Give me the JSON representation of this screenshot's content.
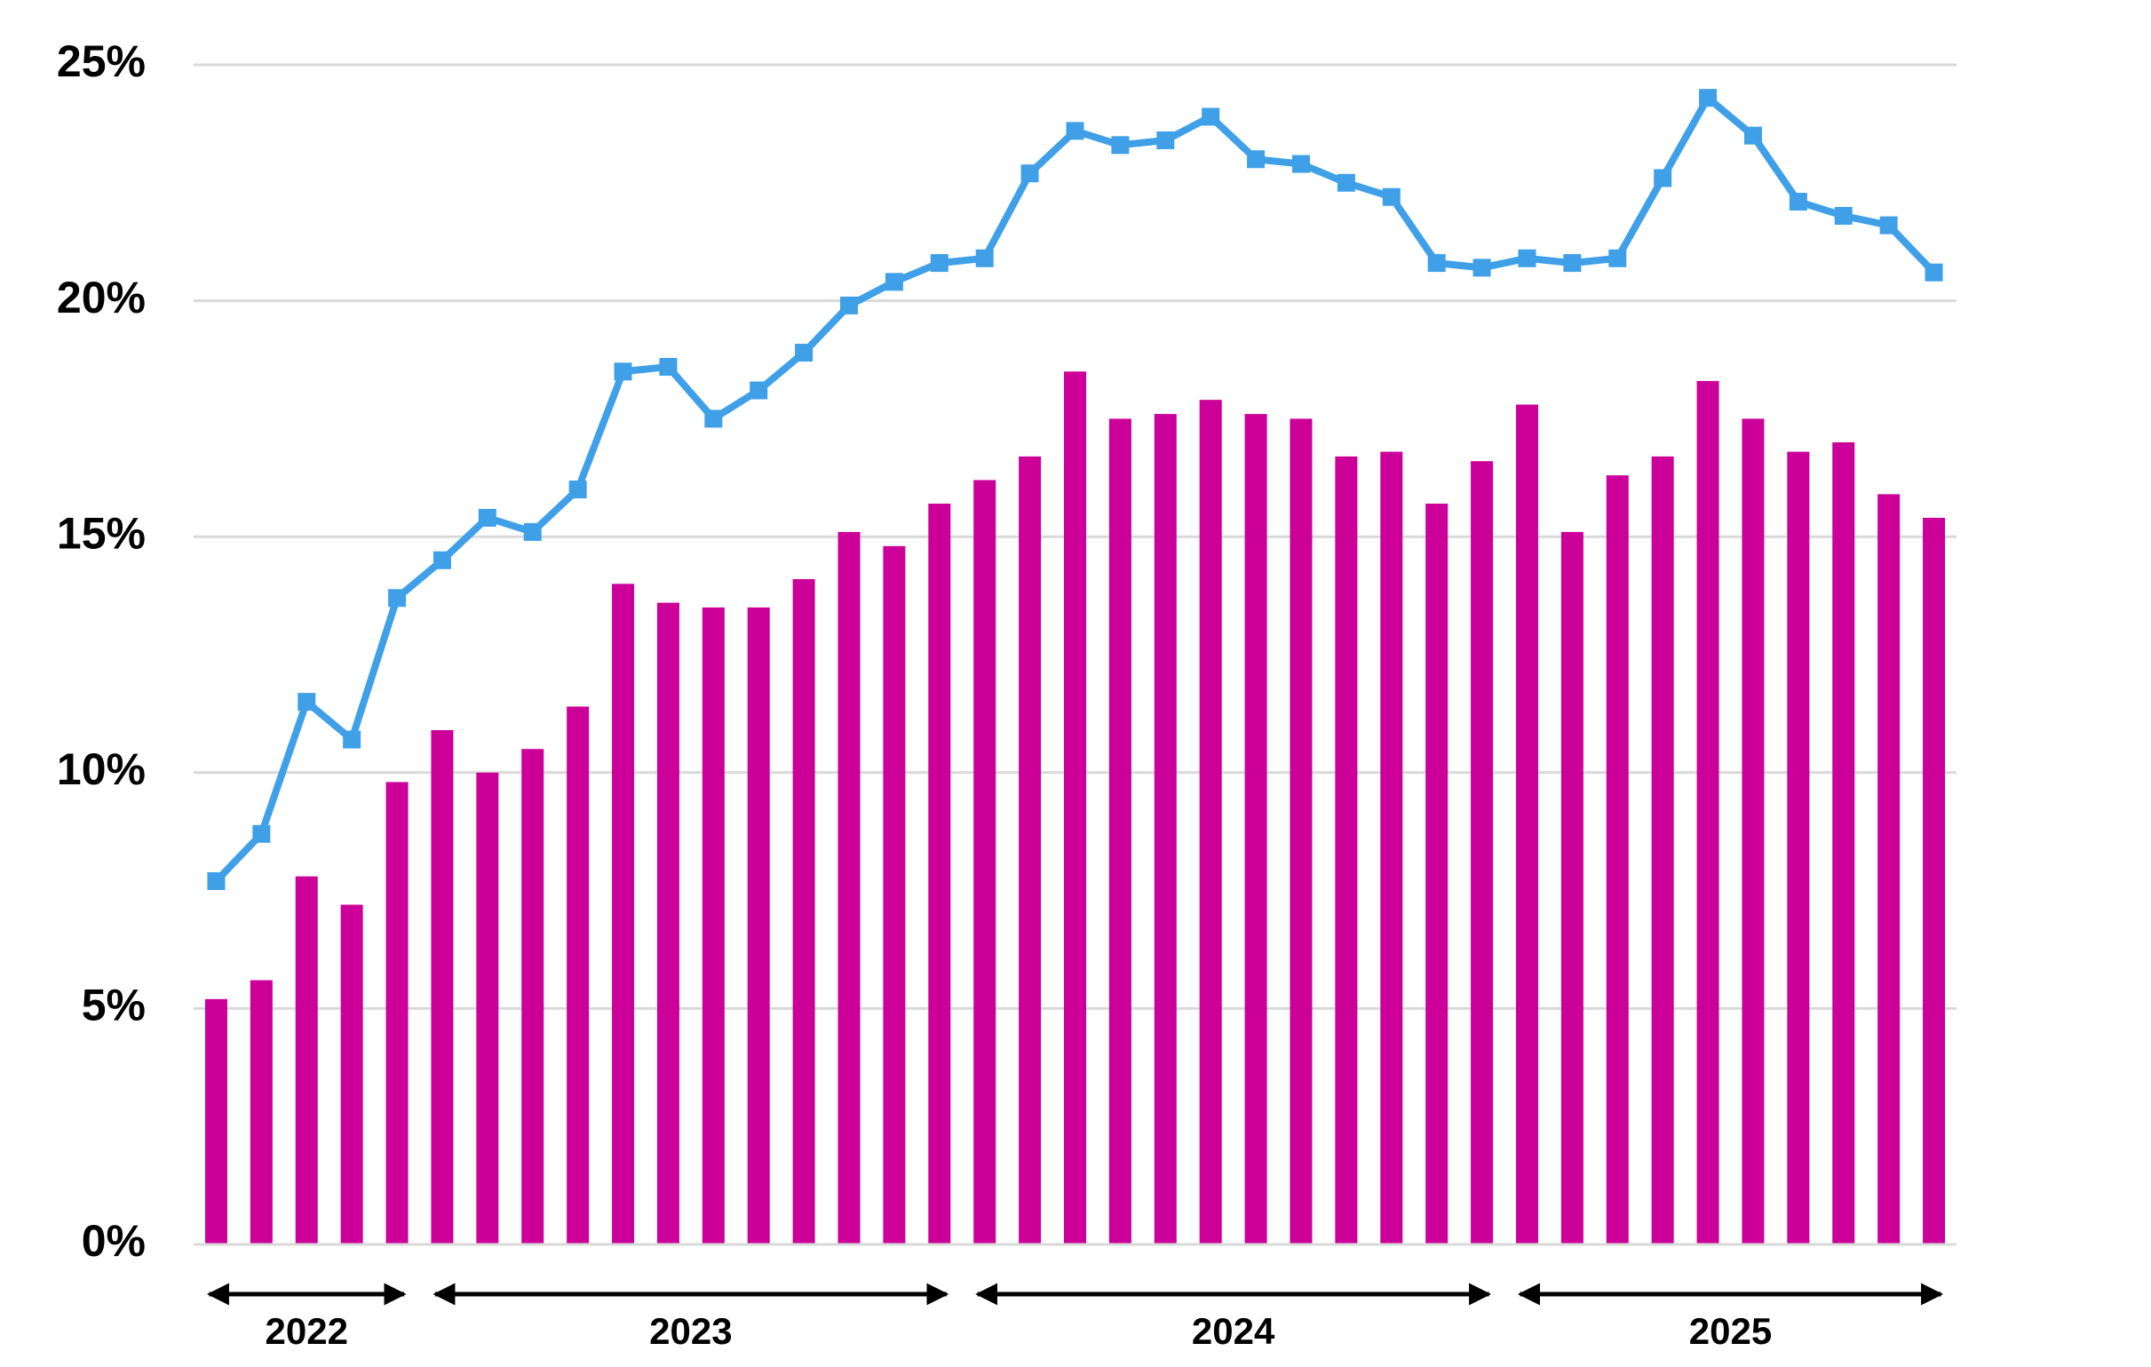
{
  "chart_data": {
    "type": "combo",
    "categories": [
      null,
      null,
      null,
      null,
      null,
      null,
      null,
      null,
      null,
      null,
      null,
      null,
      null,
      null,
      null,
      null,
      null,
      null,
      null,
      null,
      null,
      null,
      null,
      null,
      null,
      null,
      null,
      null,
      null,
      null,
      null,
      null,
      null,
      null,
      null,
      null,
      null,
      null,
      null
    ],
    "x_groups": [
      "2022",
      "2023",
      "2024",
      "2025"
    ],
    "series": [
      {
        "type": "bar",
        "color": "#cc0099",
        "values": [
          5.2,
          5.6,
          7.8,
          7.2,
          9.8,
          10.9,
          10.0,
          10.5,
          11.4,
          14.0,
          13.6,
          13.5,
          13.5,
          14.1,
          15.1,
          14.8,
          15.7,
          16.2,
          16.7,
          18.5,
          17.5,
          17.6,
          17.9,
          17.6,
          17.5,
          16.7,
          16.8,
          15.7,
          16.6,
          17.8,
          15.1,
          16.3,
          16.7,
          18.3,
          17.5,
          16.8,
          17.0,
          15.9,
          15.4
        ]
      },
      {
        "type": "line",
        "color": "#3fa0e8",
        "values": [
          7.7,
          8.7,
          11.5,
          10.7,
          13.7,
          14.5,
          15.4,
          15.1,
          16.0,
          18.5,
          18.6,
          17.5,
          18.1,
          18.9,
          19.9,
          20.4,
          20.8,
          20.9,
          22.7,
          23.6,
          23.3,
          23.4,
          23.9,
          23.0,
          22.9,
          22.5,
          22.2,
          20.8,
          20.7,
          20.9,
          20.8,
          20.9,
          22.6,
          24.3,
          23.5,
          22.1,
          21.8,
          21.6,
          20.6
        ]
      }
    ],
    "ylim": [
      0,
      25
    ],
    "yticks": [
      {
        "value": 0,
        "label": "0%"
      },
      {
        "value": 5,
        "label": "5%"
      },
      {
        "value": 10,
        "label": "10%"
      },
      {
        "value": 15,
        "label": "15%"
      },
      {
        "value": 20,
        "label": "20%"
      },
      {
        "value": 25,
        "label": "25%"
      }
    ],
    "grid": true
  }
}
